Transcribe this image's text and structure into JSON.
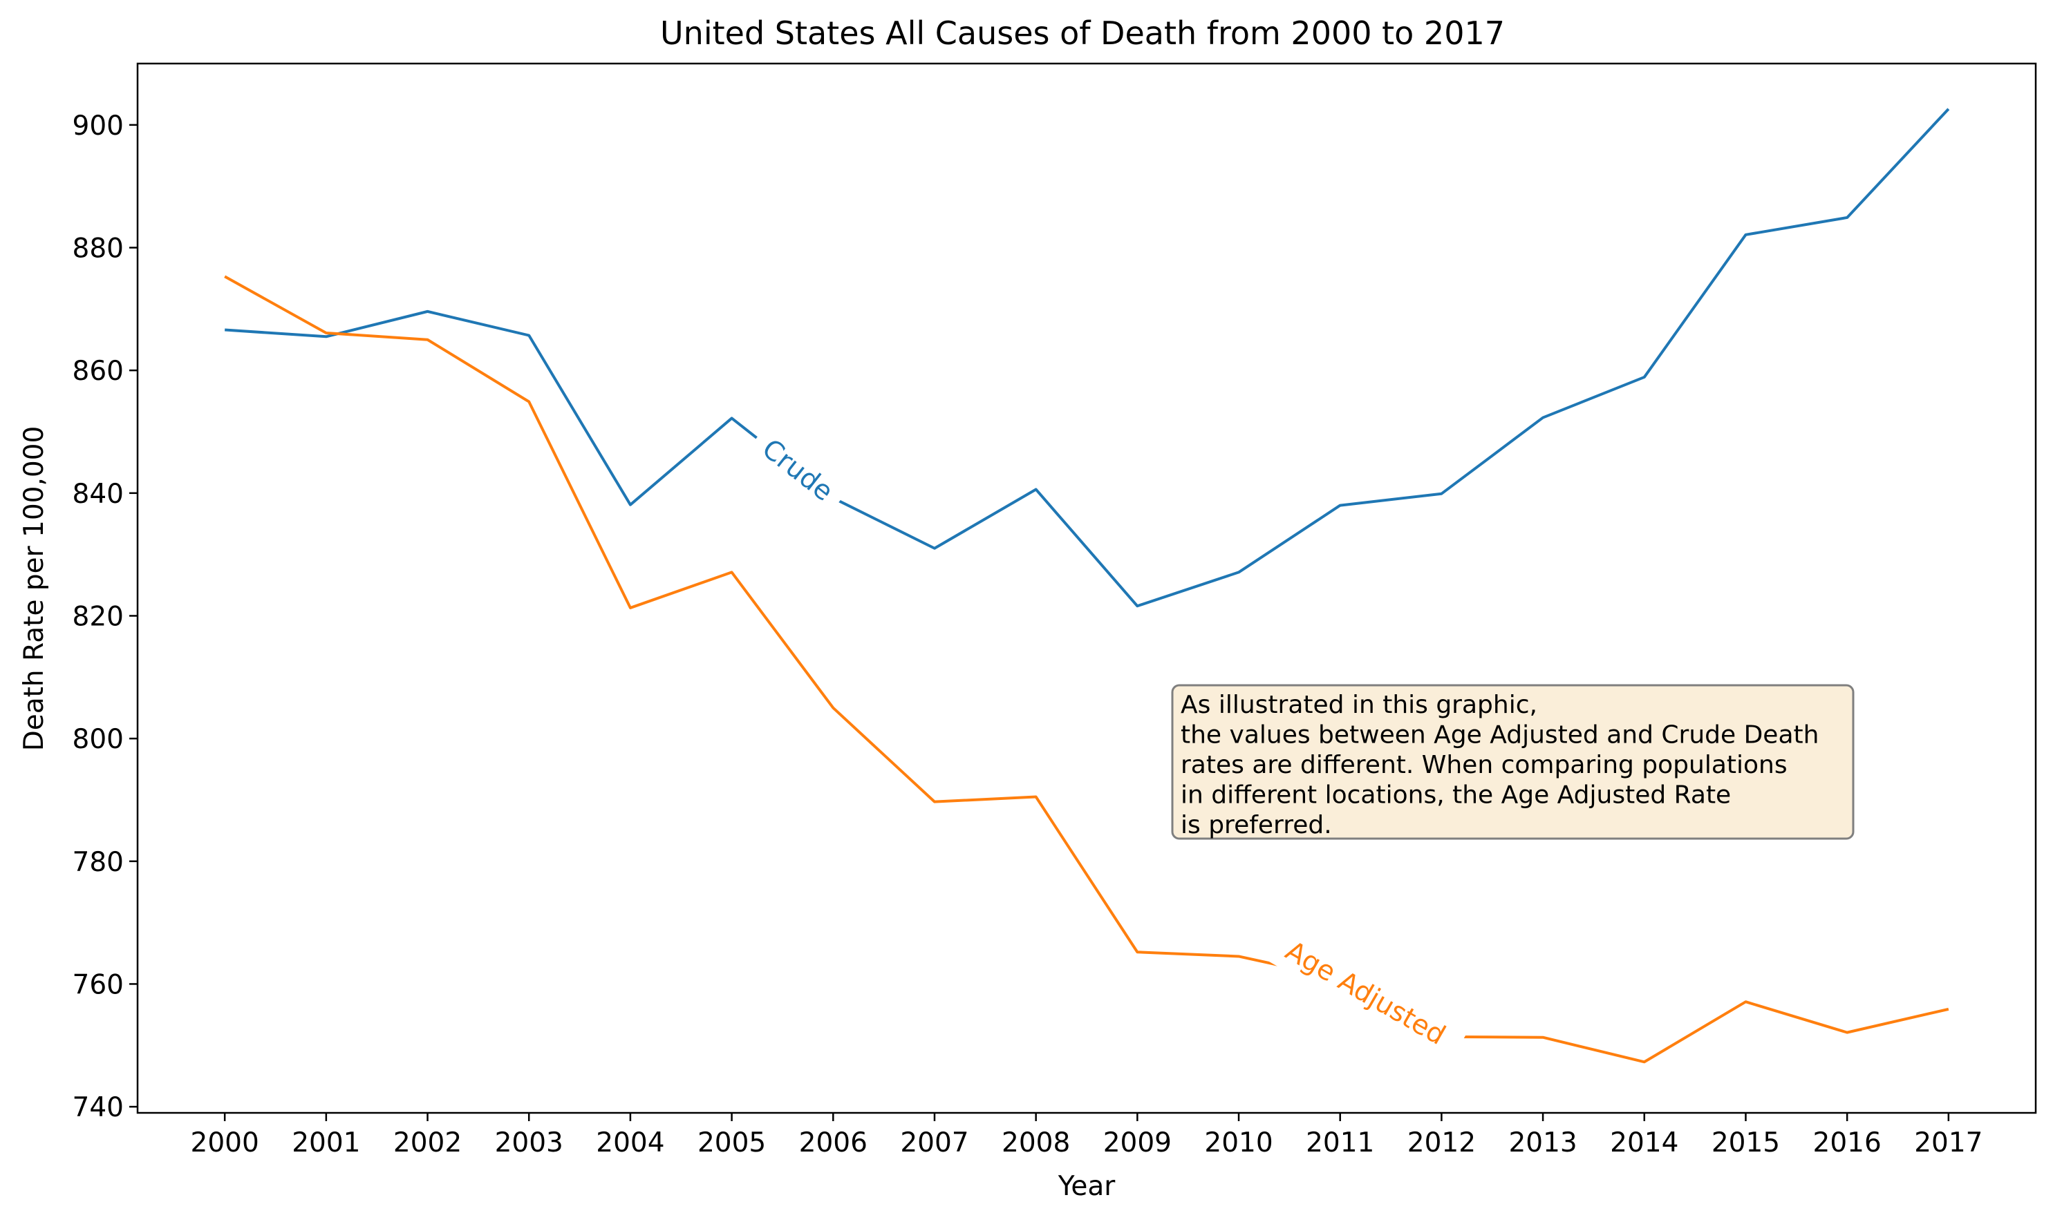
{
  "chart_data": {
    "type": "line",
    "title": "United States All Causes of Death from 2000 to 2017",
    "xlabel": "Year",
    "ylabel": "Death Rate per 100,000",
    "x": [
      2000,
      2001,
      2002,
      2003,
      2004,
      2005,
      2006,
      2007,
      2008,
      2009,
      2010,
      2011,
      2012,
      2013,
      2014,
      2015,
      2016,
      2017
    ],
    "x_tick_labels": [
      "2000",
      "2001",
      "2002",
      "2003",
      "2004",
      "2005",
      "2006",
      "2007",
      "2008",
      "2009",
      "2010",
      "2011",
      "2012",
      "2013",
      "2014",
      "2015",
      "2016",
      "2017"
    ],
    "y_ticks": [
      740,
      760,
      780,
      800,
      820,
      840,
      860,
      880,
      900
    ],
    "y_tick_labels": [
      "740",
      "760",
      "780",
      "800",
      "820",
      "840",
      "860",
      "880",
      "900"
    ],
    "ylim": [
      739,
      910
    ],
    "xlim": [
      1999.14,
      2017.86
    ],
    "grid": false,
    "series": [
      {
        "name": "Crude",
        "color": "#1f77b4",
        "values": [
          866.6,
          865.5,
          869.6,
          865.7,
          838.1,
          852.2,
          839.2,
          831.0,
          840.6,
          821.6,
          827.1,
          838.0,
          839.9,
          852.3,
          858.9,
          882.1,
          884.9,
          902.6
        ],
        "label_at_x": 2005.65
      },
      {
        "name": "Age Adjusted",
        "color": "#ff7f0e",
        "values": [
          875.3,
          866.1,
          865.0,
          854.9,
          821.3,
          827.1,
          805.0,
          789.7,
          790.5,
          765.2,
          764.5,
          760.9,
          751.4,
          751.3,
          747.3,
          757.1,
          752.1,
          755.9
        ],
        "label_at_x": 2011.25
      }
    ],
    "annotation": {
      "lines": [
        "As illustrated in this graphic,",
        "the values between Age Adjusted and Crude Death",
        "rates are different. When comparing populations",
        "in different locations, the Age Adjusted Rate",
        "is preferred."
      ],
      "background": "#f5deb3",
      "border": "#7f7f7f"
    }
  }
}
